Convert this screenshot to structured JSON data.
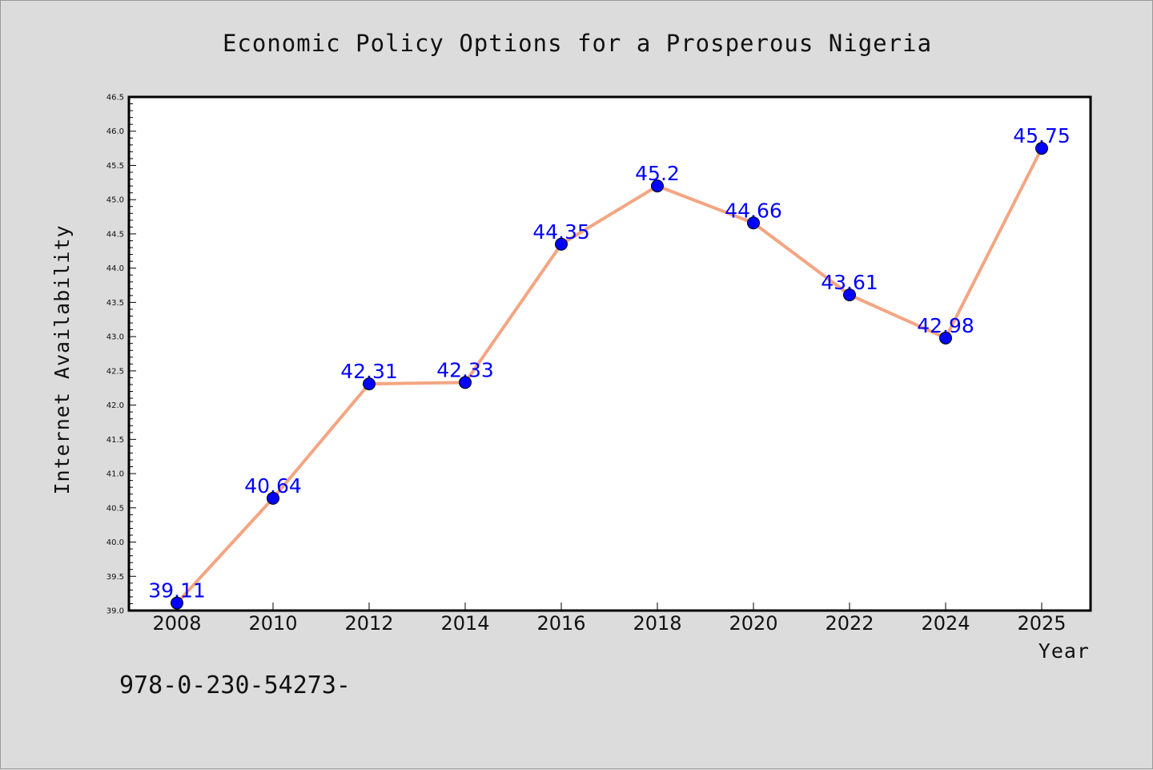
{
  "chart_data": {
    "type": "line",
    "title": "Economic Policy Options for a Prosperous Nigeria",
    "xlabel": "Year",
    "ylabel": "Internet Availability",
    "x": [
      "2008",
      "2010",
      "2012",
      "2014",
      "2016",
      "2018",
      "2020",
      "2022",
      "2024",
      "2025"
    ],
    "series": [
      {
        "values": [
          39.11,
          40.64,
          42.31,
          42.33,
          44.35,
          45.2,
          44.66,
          43.61,
          42.98,
          45.75
        ],
        "data_labels": [
          "39.11",
          "40.64",
          "42.31",
          "42.33",
          "44.35",
          "45.2",
          "44.66",
          "43.61",
          "42.98",
          "45.75"
        ],
        "line_color": "#f4a582",
        "marker_color": "#0000ff"
      }
    ],
    "ylim": [
      39.0,
      46.5
    ],
    "yticks": [
      "39.0",
      "39.5",
      "40.0",
      "40.5",
      "41.0",
      "41.5",
      "42.0",
      "42.5",
      "43.0",
      "43.5",
      "44.0",
      "44.5",
      "45.0",
      "45.5",
      "46.0",
      "46.5"
    ],
    "grid": false,
    "legend": "none"
  },
  "footnote": "978-0-230-54273-",
  "colors": {
    "background": "#dcdcdc",
    "plot_area": "#ffffff",
    "line": "#f4a582",
    "marker": "#0000ff",
    "data_label": "#0000ff"
  }
}
